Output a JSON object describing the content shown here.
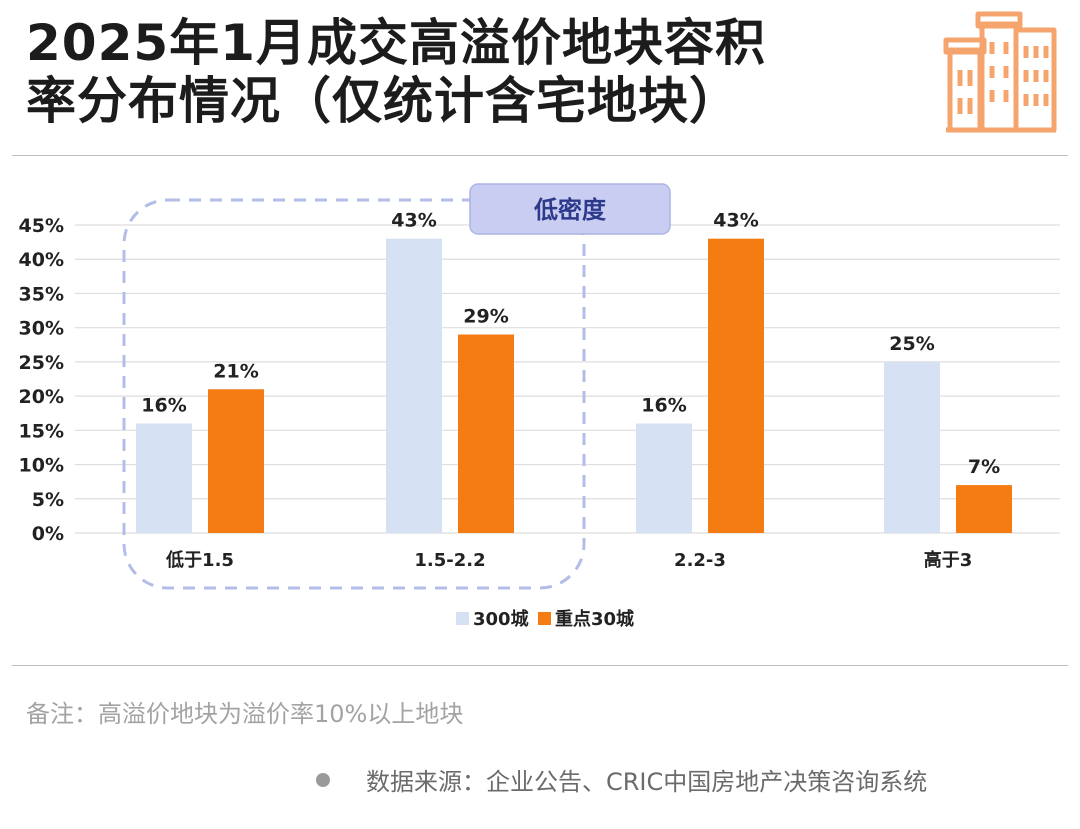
{
  "title_line1": "2025年1月成交高溢价地块容积",
  "title_line2": "率分布情况（仅统计含宅地块）",
  "note": "备注：高溢价地块为溢价率10%以上地块",
  "source": "数据来源：企业公告、CRIC中国房地产决策咨询系统",
  "icon": "buildings-icon",
  "chart_data": {
    "type": "bar",
    "categories": [
      "低于1.5",
      "1.5-2.2",
      "2.2-3",
      "高于3"
    ],
    "series": [
      {
        "name": "300城",
        "values": [
          16,
          43,
          16,
          25
        ],
        "labels": [
          "16%",
          "43%",
          "16%",
          "25%"
        ],
        "color": "#d6e2f3"
      },
      {
        "name": "重点30城",
        "values": [
          21,
          29,
          43,
          7
        ],
        "labels": [
          "21%",
          "29%",
          "43%",
          "7%"
        ],
        "color": "#f47c12"
      }
    ],
    "yticks": [
      "0%",
      "5%",
      "10%",
      "15%",
      "20%",
      "25%",
      "30%",
      "35%",
      "40%",
      "45%"
    ],
    "ylim": [
      0,
      45
    ],
    "grid": true,
    "legend_position": "bottom-center",
    "annotation": {
      "text": "低密度",
      "categories": [
        "低于1.5",
        "1.5-2.2"
      ]
    }
  }
}
